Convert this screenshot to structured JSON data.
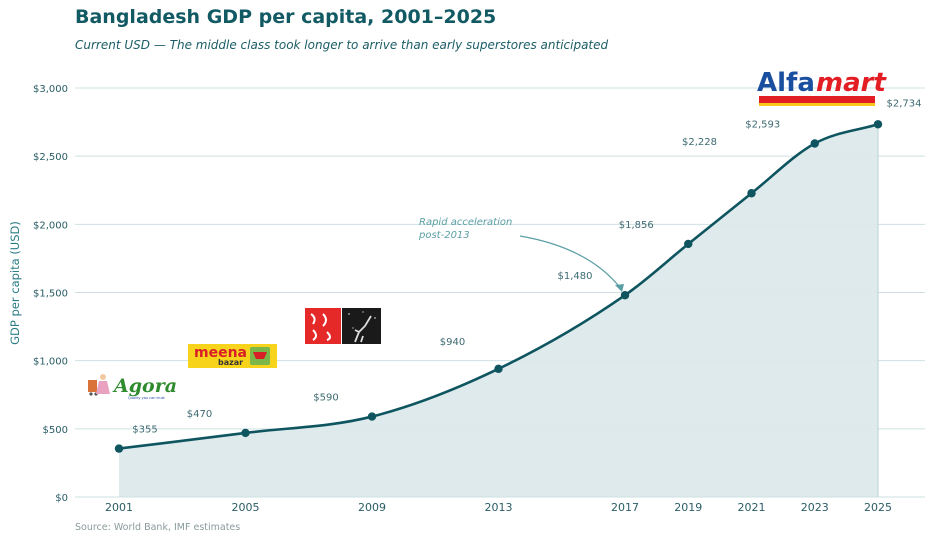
{
  "header": {
    "title": "Bangladesh GDP per capita, 2001–2025",
    "subtitle": "Current USD — The middle class took longer to arrive than early superstores anticipated"
  },
  "footer": {
    "source": "Source: World Bank, IMF estimates"
  },
  "colors": {
    "line": "#0e5560",
    "fill": "#dce9ea",
    "grid": "#cfe0e2",
    "arrow": "#5a9ea3"
  },
  "chart_data": {
    "type": "area",
    "title": "Bangladesh GDP per capita, 2001–2025",
    "subtitle": "Current USD — The middle class took longer to arrive than early superstores anticipated",
    "xlabel": "",
    "ylabel": "GDP per capita (USD)",
    "ylim": [
      0,
      3000
    ],
    "yticks": [
      0,
      500,
      1000,
      1500,
      2000,
      2500,
      3000
    ],
    "ytick_labels": [
      "$0",
      "$500",
      "$1,000",
      "$1,500",
      "$2,000",
      "$2,500",
      "$3,000"
    ],
    "grid": true,
    "x": [
      2001,
      2005,
      2009,
      2013,
      2017,
      2019,
      2021,
      2023,
      2025
    ],
    "xtick_labels": [
      "2001",
      "2005",
      "2009",
      "2013",
      "2017",
      "2019",
      "2021",
      "2023",
      "2025"
    ],
    "values": [
      355,
      470,
      590,
      940,
      1480,
      1856,
      2228,
      2593,
      2734
    ],
    "data_labels": [
      "$355",
      "$470",
      "$590",
      "$940",
      "$1,480",
      "$1,856",
      "$2,228",
      "$2,593",
      "$2,734"
    ],
    "annotation": {
      "text_lines": [
        "Rapid acceleration",
        "post-2013"
      ],
      "target_x": 2017,
      "target_y": 1480
    },
    "logos": [
      {
        "name": "Agora",
        "x": 2001.5,
        "y": 810
      },
      {
        "name": "Meena Bazar",
        "x": 2005,
        "y": 1040
      },
      {
        "name": "Shwapno",
        "x": 2009,
        "y": 1250
      },
      {
        "name": "Alfamart",
        "x": 2024,
        "y": 2970
      }
    ]
  },
  "logos": {
    "agora": {
      "text": "Agora",
      "tagline": "Quality you can trust"
    },
    "meena": {
      "text": "meena",
      "sub": "bazar"
    },
    "alfamart": {
      "text_a": "Alfa",
      "text_b": "mart"
    }
  }
}
